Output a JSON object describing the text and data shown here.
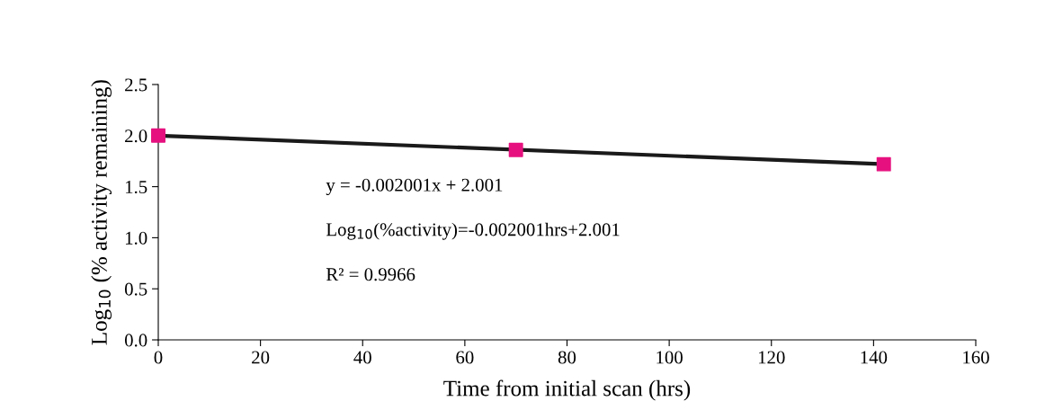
{
  "chart_data": {
    "type": "scatter",
    "xlabel": "Time from initial scan (hrs)",
    "ylabel": "Log$_{10}$ (% activity remaining)",
    "xlim": [
      0,
      160
    ],
    "xticks": [
      0,
      20,
      40,
      60,
      80,
      100,
      120,
      140,
      160
    ],
    "ylim": [
      0,
      2.5
    ],
    "yticks": [
      {
        "value": 0,
        "label": "0.0"
      },
      {
        "value": 0.5,
        "label": "0.5"
      },
      {
        "value": 1,
        "label": "1.0"
      },
      {
        "value": 1.5,
        "label": "1.5"
      },
      {
        "value": 2,
        "label": "2.0"
      },
      {
        "value": 2.5,
        "label": "2.5"
      }
    ],
    "grid": false,
    "legend": false,
    "series": [
      {
        "type": "line",
        "color": "#1a1a1a",
        "x": [
          0,
          142
        ],
        "values": [
          2.0,
          1.72
        ],
        "marker": "none",
        "line_style": "solid"
      },
      {
        "color": "#e6117f",
        "x": [
          0,
          70,
          142
        ],
        "values": [
          2.0,
          1.86,
          1.72
        ],
        "marker": "square"
      }
    ],
    "annotations": [
      "y = -0.002001x + 2.001",
      "Log$_{10}$(%activity)=-0.002001hrs+2.001",
      "R² = 0.9966"
    ]
  }
}
